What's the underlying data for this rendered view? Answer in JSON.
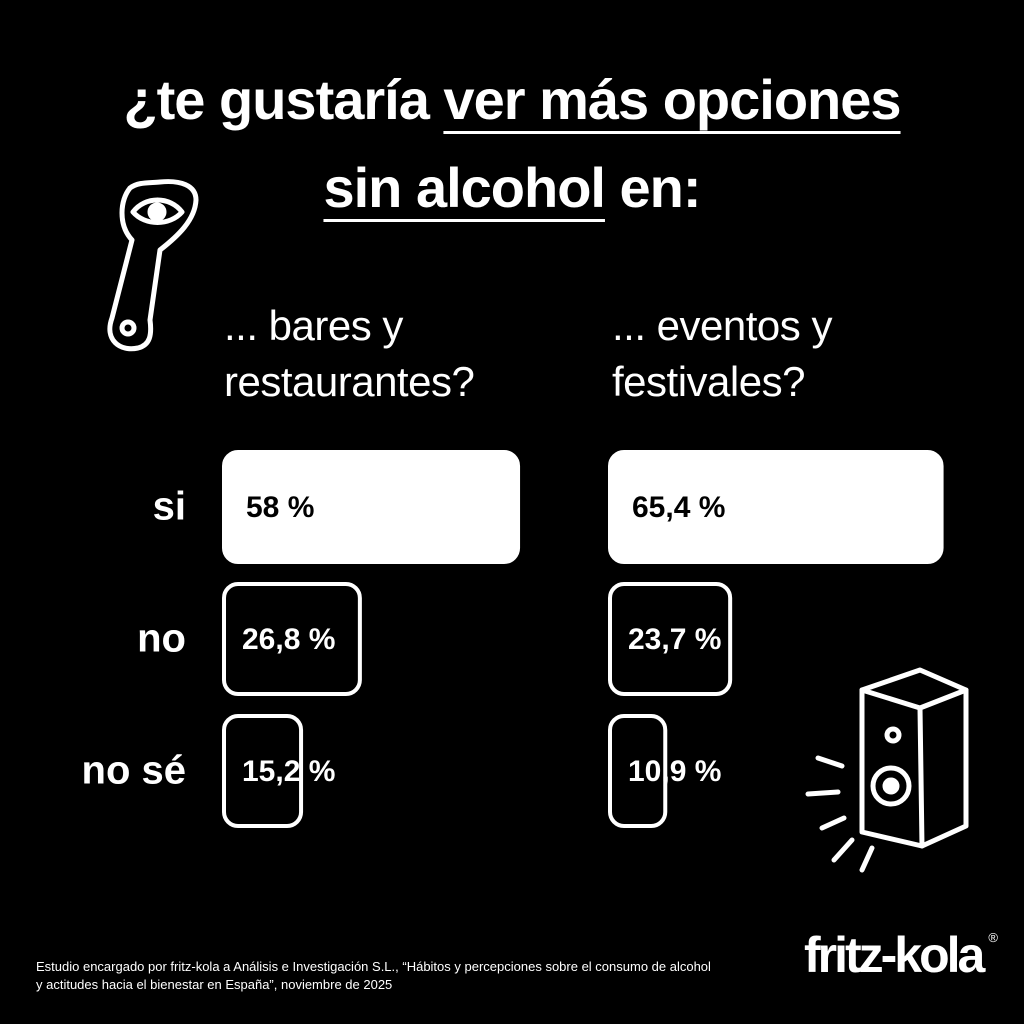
{
  "title_segments": [
    "¿te gustaría ",
    "ver más opciones",
    "sin alcohol",
    " en:"
  ],
  "title_underlined": [
    false,
    true,
    true,
    false
  ],
  "chart_data": [
    {
      "type": "bar",
      "title": "... bares y\nrestaurantes?",
      "categories": [
        "si",
        "no",
        "no sé"
      ],
      "values": [
        58,
        26.8,
        15.2
      ],
      "value_labels": [
        "58 %",
        "26,8 %",
        "15,2 %"
      ],
      "bar_fills": [
        "#ffffff",
        "#000000",
        "#000000"
      ],
      "outline": "#ffffff"
    },
    {
      "type": "bar",
      "title": "... eventos y\nfestivales?",
      "values": [
        65.4,
        23.7,
        10.9
      ],
      "value_labels": [
        "65,4 %",
        "23,7 %",
        "10,9 %"
      ],
      "bar_fills": [
        "#ffffff",
        "#000000",
        "#000000"
      ],
      "outline": "#ffffff"
    }
  ],
  "footnote": "Estudio encargado por fritz-kola a Análisis e Investigación S.L., “Hábitos y percepciones sobre el consumo de alcohol\ny actitudes hacia el bienestar en España”, noviembre de 2025",
  "logo": "fritz-kola",
  "logo_mark": "®"
}
